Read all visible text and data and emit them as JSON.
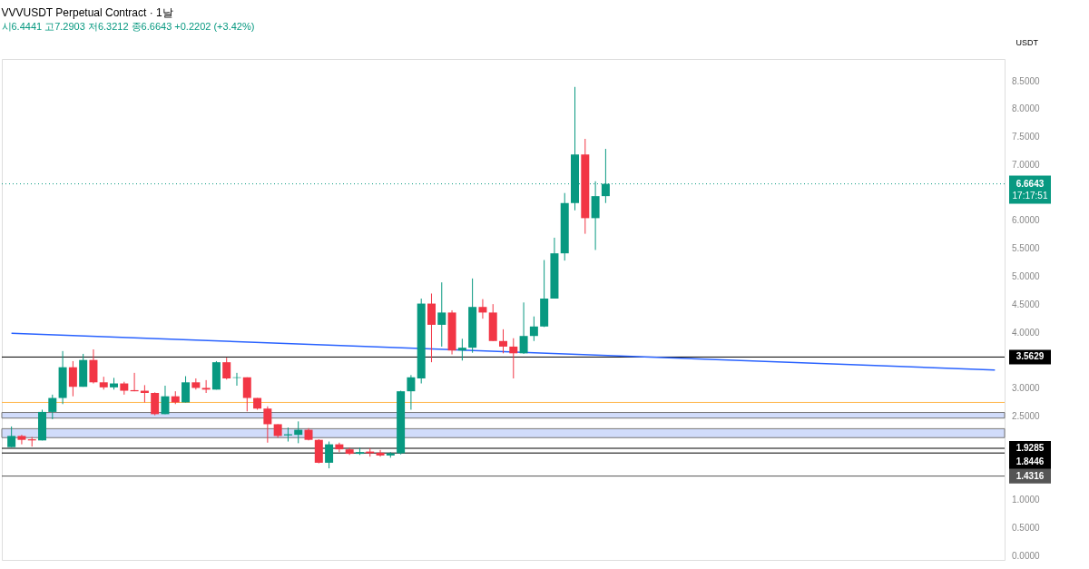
{
  "chart_data": {
    "type": "candlestick",
    "title": "VVVUSDT Perpetual Contract · 1날",
    "subtitle": "시6.4441 고7.2903 저6.3212 종6.6643 +0.2202 (+3.42%)",
    "ylabel": "USDT",
    "categories": [
      null,
      null,
      null,
      null,
      null,
      null,
      null,
      null,
      null,
      null,
      null,
      null,
      null,
      null,
      null,
      null,
      null,
      null,
      null,
      null,
      null,
      null,
      null,
      null,
      null,
      null,
      null,
      null,
      null,
      null,
      null,
      null,
      null,
      null,
      null,
      null,
      null,
      null,
      null,
      null,
      null,
      null,
      null,
      null,
      null,
      null,
      null,
      null,
      null,
      null,
      null,
      null,
      null,
      null,
      null,
      null,
      null,
      null,
      null,
      null,
      null,
      null,
      null,
      null,
      null,
      null,
      null,
      null,
      null,
      null,
      null,
      null,
      null,
      null,
      null,
      null,
      null,
      null,
      null,
      null,
      null,
      null,
      null,
      null,
      null,
      null,
      null,
      null,
      null,
      null,
      null,
      null,
      null,
      null,
      null,
      null,
      null
    ],
    "ohlc": [
      [
        1.95,
        2.32,
        1.95,
        2.15
      ],
      [
        2.15,
        2.17,
        2.0,
        2.08
      ],
      [
        2.09,
        2.13,
        1.96,
        2.07
      ],
      [
        2.07,
        2.62,
        2.07,
        2.58
      ],
      [
        2.58,
        2.89,
        2.45,
        2.83
      ],
      [
        2.83,
        3.67,
        2.72,
        3.38
      ],
      [
        3.38,
        3.49,
        2.86,
        3.03
      ],
      [
        3.03,
        3.62,
        3.03,
        3.51
      ],
      [
        3.51,
        3.7,
        3.09,
        3.11
      ],
      [
        3.11,
        3.21,
        2.98,
        3.02
      ],
      [
        3.02,
        3.19,
        2.98,
        3.09
      ],
      [
        3.09,
        3.12,
        2.89,
        2.96
      ],
      [
        2.97,
        3.28,
        2.95,
        2.95
      ],
      [
        2.96,
        3.06,
        2.75,
        2.92
      ],
      [
        2.92,
        2.93,
        2.52,
        2.54
      ],
      [
        2.54,
        3.05,
        2.54,
        2.86
      ],
      [
        2.86,
        2.95,
        2.72,
        2.75
      ],
      [
        2.75,
        3.22,
        2.75,
        3.11
      ],
      [
        3.11,
        3.18,
        2.98,
        3.01
      ],
      [
        3.01,
        3.15,
        2.92,
        2.98
      ],
      [
        2.98,
        3.49,
        2.98,
        3.47
      ],
      [
        3.47,
        3.55,
        3.16,
        3.18
      ],
      [
        3.19,
        3.28,
        3.05,
        3.2
      ],
      [
        3.2,
        3.2,
        2.59,
        2.83
      ],
      [
        2.83,
        2.83,
        2.62,
        2.64
      ],
      [
        2.64,
        2.68,
        2.03,
        2.36
      ],
      [
        2.36,
        2.36,
        2.12,
        2.15
      ],
      [
        2.16,
        2.3,
        2.05,
        2.18
      ],
      [
        2.17,
        2.41,
        2.02,
        2.26
      ],
      [
        2.26,
        2.29,
        2.07,
        2.08
      ],
      [
        2.08,
        2.09,
        1.66,
        1.67
      ],
      [
        1.67,
        2.05,
        1.57,
        2.0
      ],
      [
        2.0,
        2.03,
        1.86,
        1.91
      ],
      [
        1.91,
        1.94,
        1.81,
        1.83
      ],
      [
        1.83,
        1.94,
        1.81,
        1.86
      ],
      [
        1.87,
        1.93,
        1.78,
        1.84
      ],
      [
        1.85,
        1.9,
        1.78,
        1.8
      ],
      [
        1.8,
        1.86,
        1.76,
        1.84
      ],
      [
        1.84,
        2.96,
        1.82,
        2.95
      ],
      [
        2.95,
        3.24,
        2.62,
        3.2
      ],
      [
        3.18,
        4.61,
        3.09,
        4.52
      ],
      [
        4.52,
        4.7,
        3.47,
        4.14
      ],
      [
        4.14,
        4.9,
        3.75,
        4.36
      ],
      [
        4.36,
        4.4,
        3.61,
        3.68
      ],
      [
        3.68,
        3.89,
        3.5,
        3.73
      ],
      [
        3.73,
        4.97,
        3.64,
        4.46
      ],
      [
        4.46,
        4.6,
        4.25,
        4.36
      ],
      [
        4.36,
        4.51,
        3.85,
        3.85
      ],
      [
        3.85,
        4.06,
        3.63,
        3.75
      ],
      [
        3.75,
        3.9,
        3.18,
        3.63
      ],
      [
        3.63,
        4.54,
        3.62,
        3.94
      ],
      [
        3.94,
        4.29,
        3.85,
        4.11
      ],
      [
        4.11,
        5.3,
        4.1,
        4.61
      ],
      [
        4.61,
        5.7,
        4.61,
        5.42
      ],
      [
        5.42,
        6.5,
        5.29,
        6.32
      ],
      [
        6.32,
        8.4,
        6.19,
        7.19
      ],
      [
        7.19,
        7.47,
        5.77,
        6.05
      ],
      [
        6.05,
        6.71,
        5.48,
        6.4441
      ],
      [
        6.4441,
        7.2903,
        6.3212,
        6.6643
      ],
      null,
      null,
      null,
      null,
      null,
      null,
      null,
      null,
      null,
      null,
      null,
      null,
      null,
      null,
      null,
      null,
      null,
      null,
      null,
      null,
      null,
      null,
      null,
      null,
      null,
      null,
      null,
      null,
      null,
      null,
      null,
      null,
      null,
      null,
      null,
      null,
      null,
      null
    ],
    "colors": [
      "#089981",
      "#f23645",
      "#f23645",
      "#089981",
      "#089981",
      "#089981",
      "#f23645",
      "#089981",
      "#f23645",
      "#f23645",
      "#089981",
      "#f23645",
      "#f23645",
      "#f23645",
      "#f23645",
      "#089981",
      "#f23645",
      "#089981",
      "#f23645",
      "#f23645",
      "#089981",
      "#f23645",
      "#089981",
      "#f23645",
      "#f23645",
      "#f23645",
      "#f23645",
      "#089981",
      "#089981",
      "#f23645",
      "#f23645",
      "#089981",
      "#f23645",
      "#f23645",
      "#089981",
      "#f23645",
      "#f23645",
      "#089981",
      "#089981",
      "#089981",
      "#089981",
      "#f23645",
      "#089981",
      "#f23645",
      "#089981",
      "#089981",
      "#f23645",
      "#f23645",
      "#f23645",
      "#f23645",
      "#089981",
      "#089981",
      "#089981",
      "#089981",
      "#089981",
      "#089981",
      "#f23645",
      "#089981",
      "#089981",
      null,
      null,
      null,
      null,
      null,
      null,
      null,
      null,
      null,
      null,
      null,
      null,
      null,
      null,
      null,
      null,
      null,
      null,
      null,
      null,
      null,
      null,
      null,
      null,
      null,
      null,
      null,
      null,
      null,
      null,
      null,
      null,
      null,
      null,
      null,
      null,
      null,
      null
    ],
    "series": [
      {
        "type": "line",
        "color": "#2962ff",
        "values": [
          3.99,
          null,
          null,
          null,
          null,
          null,
          null,
          null,
          null,
          null,
          null,
          null,
          null,
          null,
          null,
          null,
          null,
          null,
          null,
          null,
          null,
          null,
          null,
          null,
          null,
          null,
          null,
          null,
          null,
          null,
          null,
          null,
          null,
          null,
          null,
          null,
          null,
          null,
          null,
          null,
          null,
          null,
          null,
          null,
          null,
          null,
          null,
          null,
          null,
          null,
          null,
          null,
          null,
          null,
          null,
          null,
          null,
          null,
          null,
          null,
          null,
          null,
          null,
          null,
          null,
          null,
          null,
          null,
          null,
          null,
          null,
          null,
          null,
          null,
          null,
          null,
          null,
          null,
          null,
          null,
          null,
          null,
          null,
          null,
          null,
          null,
          null,
          null,
          null,
          null,
          null,
          null,
          null,
          null,
          null,
          null,
          3.33
        ]
      }
    ],
    "ref_lines": [
      {
        "axis": "y",
        "value": 3.5629,
        "label": "3.5629",
        "color": "#000000"
      },
      {
        "axis": "y",
        "value": 1.9285,
        "label": "1.9285",
        "color": "#000000"
      },
      {
        "axis": "y",
        "value": 1.8446,
        "label": "1.8446",
        "color": "#000000"
      },
      {
        "axis": "y",
        "value": 1.4316,
        "label": "1.4316",
        "color": "#555555"
      },
      {
        "axis": "y",
        "value": 2.75,
        "color": "#ffb74d"
      },
      {
        "axis": "y",
        "value": 6.6643,
        "label": "6.6643",
        "color": "#089981",
        "line_style": "dotted"
      }
    ],
    "bands": [
      {
        "axis": "y",
        "from": 2.47,
        "to": 2.57,
        "color": "#d1dcfb"
      },
      {
        "axis": "y",
        "from": 2.12,
        "to": 2.28,
        "color": "#d1dcfb"
      }
    ],
    "annotations": [
      "17:17:51"
    ],
    "ylim": [
      -0.07,
      8.9
    ],
    "yticks": [
      {
        "value": 0,
        "label": "0.0000"
      },
      {
        "value": 0.5,
        "label": "0.5000"
      },
      {
        "value": 1,
        "label": "1.0000"
      },
      {
        "value": 2.5,
        "label": "2.5000"
      },
      {
        "value": 3,
        "label": "3.0000"
      },
      {
        "value": 4,
        "label": "4.0000"
      },
      {
        "value": 4.5,
        "label": "4.5000"
      },
      {
        "value": 5,
        "label": "5.0000"
      },
      {
        "value": 5.5,
        "label": "5.5000"
      },
      {
        "value": 6,
        "label": "6.0000"
      },
      {
        "value": 7,
        "label": "7.0000"
      },
      {
        "value": 7.5,
        "label": "7.5000"
      },
      {
        "value": 8,
        "label": "8.0000"
      },
      {
        "value": 8.5,
        "label": "8.5000"
      }
    ],
    "tick_labels": "y",
    "grid": false
  }
}
